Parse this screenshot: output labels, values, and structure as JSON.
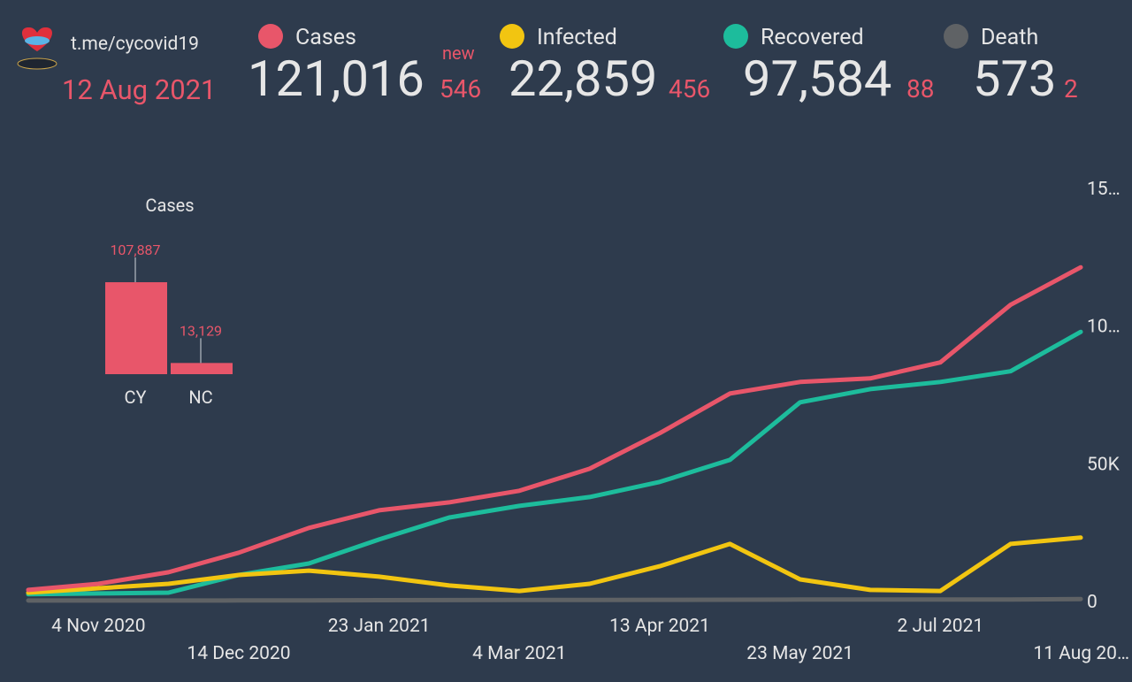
{
  "header": {
    "link": "t.me/cycovid19",
    "date": "12 Aug 2021",
    "new_label": "new",
    "stats": [
      {
        "total": "121,016",
        "new": "546"
      },
      {
        "total": "22,859",
        "new": "456"
      },
      {
        "total": "97,584",
        "new": "88"
      },
      {
        "total": "573",
        "new": "2"
      }
    ]
  },
  "chart_data": [
    {
      "type": "line",
      "x": [
        "2020-10-15",
        "2020-11-04",
        "2020-11-24",
        "2020-12-14",
        "2021-01-03",
        "2021-01-23",
        "2021-02-12",
        "2021-03-04",
        "2021-03-24",
        "2021-04-13",
        "2021-05-03",
        "2021-05-23",
        "2021-06-12",
        "2021-07-02",
        "2021-07-22",
        "2021-08-11"
      ],
      "xlim": [
        "2020-10-14",
        "2021-08-11"
      ],
      "xticks": [
        {
          "value": "2020-11-04",
          "label": "4 Nov 2020"
        },
        {
          "value": "2020-12-14",
          "label": "14 Dec 2020"
        },
        {
          "value": "2021-01-23",
          "label": "23 Jan 2021"
        },
        {
          "value": "2021-03-04",
          "label": "4 Mar 2021"
        },
        {
          "value": "2021-04-13",
          "label": "13 Apr 2021"
        },
        {
          "value": "2021-05-23",
          "label": "23 May 2021"
        },
        {
          "value": "2021-07-02",
          "label": "2 Jul 2021"
        },
        {
          "value": "2021-08-11",
          "label": "11 Aug 20…"
        }
      ],
      "ylim": [
        0,
        150000
      ],
      "yticks": [
        0,
        {
          "value": 50000,
          "label": "50K"
        },
        {
          "value": 100000,
          "label": "10…"
        },
        {
          "value": 150000,
          "label": "15…"
        }
      ],
      "series": [
        {
          "name": "Cases",
          "color": "#e8566a",
          "values": [
            3900,
            6100,
            10300,
            17400,
            26400,
            32800,
            35700,
            39900,
            47900,
            60800,
            75200,
            79400,
            80700,
            86500,
            107400,
            121016
          ]
        },
        {
          "name": "Infected",
          "color": "#f2c511",
          "values": [
            2900,
            4500,
            6100,
            9300,
            10900,
            8700,
            5500,
            3500,
            6100,
            12500,
            20600,
            7700,
            3900,
            3500,
            20600,
            22859
          ]
        },
        {
          "name": "Recovered",
          "color": "#1dbc9c",
          "values": [
            2300,
            2600,
            2900,
            9300,
            13500,
            22200,
            30200,
            34400,
            37600,
            43100,
            51100,
            72000,
            76800,
            79400,
            83300,
            97584
          ]
        },
        {
          "name": "Death",
          "color": "#5f6265",
          "values": [
            20,
            30,
            40,
            60,
            100,
            150,
            200,
            230,
            250,
            280,
            330,
            370,
            380,
            380,
            420,
            573
          ]
        }
      ]
    },
    {
      "type": "bar",
      "title": "Cases",
      "categories": [
        "CY",
        "NC"
      ],
      "values": [
        107887,
        13129
      ],
      "value_labels": [
        "107,887",
        "13,129"
      ],
      "color": "#e8566a",
      "ylim": [
        0,
        110000
      ]
    }
  ]
}
